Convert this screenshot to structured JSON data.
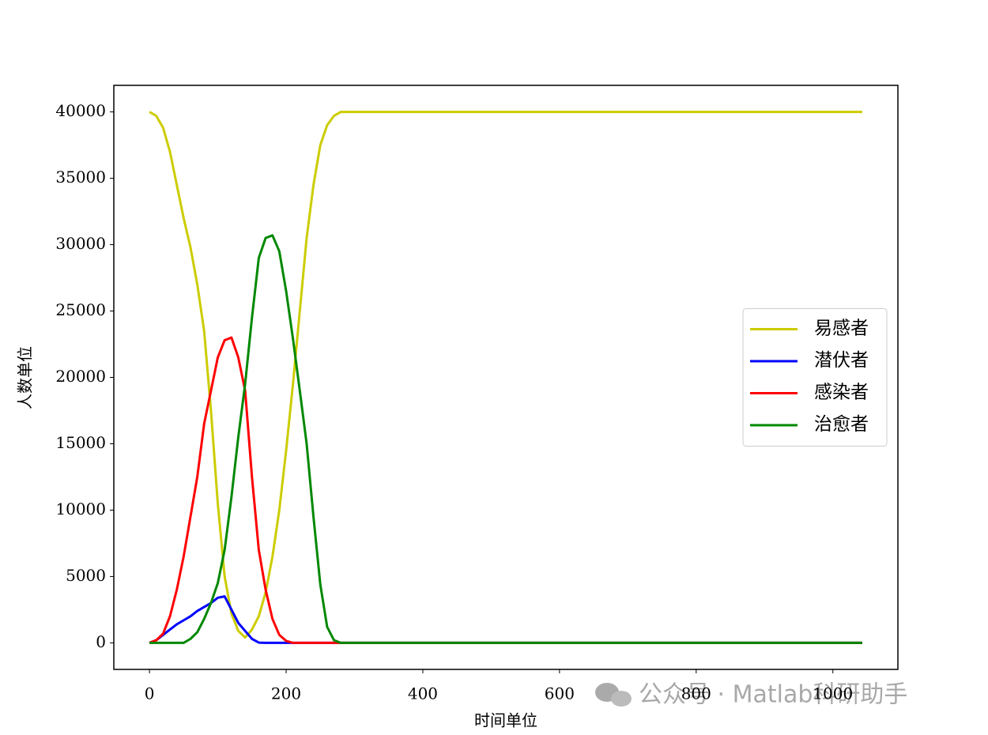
{
  "chart_data": {
    "type": "line",
    "x_label": "时间单位",
    "y_label": "人数单位",
    "x": [
      0,
      10,
      20,
      30,
      40,
      50,
      60,
      70,
      80,
      90,
      100,
      110,
      120,
      130,
      140,
      150,
      160,
      170,
      180,
      190,
      200,
      210,
      220,
      230,
      240,
      250,
      260,
      270,
      280,
      290,
      300,
      400,
      500,
      600,
      700,
      800,
      900,
      1000,
      1043
    ],
    "series": [
      {
        "name": "易感者",
        "color": "#cccc00",
        "values": [
          40000,
          39700,
          38800,
          37000,
          34500,
          32000,
          29800,
          27000,
          23500,
          17500,
          10500,
          5000,
          2200,
          900,
          400,
          1000,
          2000,
          3800,
          6500,
          10000,
          14500,
          19500,
          25000,
          30500,
          34500,
          37500,
          39000,
          39700,
          40000,
          40000,
          40000,
          40000,
          40000,
          40000,
          40000,
          40000,
          40000,
          40000,
          40000
        ]
      },
      {
        "name": "潜伏者",
        "color": "#0000ff",
        "values": [
          0,
          200,
          600,
          1000,
          1400,
          1700,
          2000,
          2400,
          2700,
          3000,
          3400,
          3500,
          2500,
          1500,
          900,
          300,
          20,
          0,
          0,
          0,
          0,
          0,
          0,
          0,
          0,
          0,
          0,
          0,
          0,
          0,
          0,
          0,
          0,
          0,
          0,
          0,
          0,
          0,
          0
        ]
      },
      {
        "name": "感染者",
        "color": "#ff0000",
        "values": [
          0,
          200,
          700,
          2000,
          4000,
          6500,
          9500,
          12500,
          16500,
          19000,
          21500,
          22800,
          23000,
          21500,
          19000,
          12500,
          7000,
          4000,
          1800,
          600,
          150,
          0,
          0,
          0,
          0,
          0,
          0,
          0,
          0,
          0,
          0,
          0,
          0,
          0,
          0,
          0,
          0,
          0,
          0
        ]
      },
      {
        "name": "治愈者",
        "color": "#008800",
        "values": [
          0,
          0,
          0,
          0,
          0,
          0,
          300,
          800,
          1800,
          3000,
          4500,
          7000,
          11000,
          15500,
          19500,
          24500,
          29000,
          30500,
          30700,
          29500,
          26500,
          22900,
          19000,
          15000,
          9500,
          4400,
          1200,
          200,
          0,
          0,
          0,
          0,
          0,
          0,
          0,
          0,
          0,
          0,
          0
        ]
      }
    ],
    "xlim": [
      -52.15,
      1095.15
    ],
    "xticks": [
      0,
      200,
      400,
      600,
      800,
      1000
    ],
    "ylim": [
      -2000,
      42000
    ],
    "yticks": [
      0,
      5000,
      10000,
      15000,
      20000,
      25000,
      30000,
      35000,
      40000
    ],
    "grid": false,
    "legend": "center right",
    "watermark": "公众号 · Matlab科研助手"
  }
}
